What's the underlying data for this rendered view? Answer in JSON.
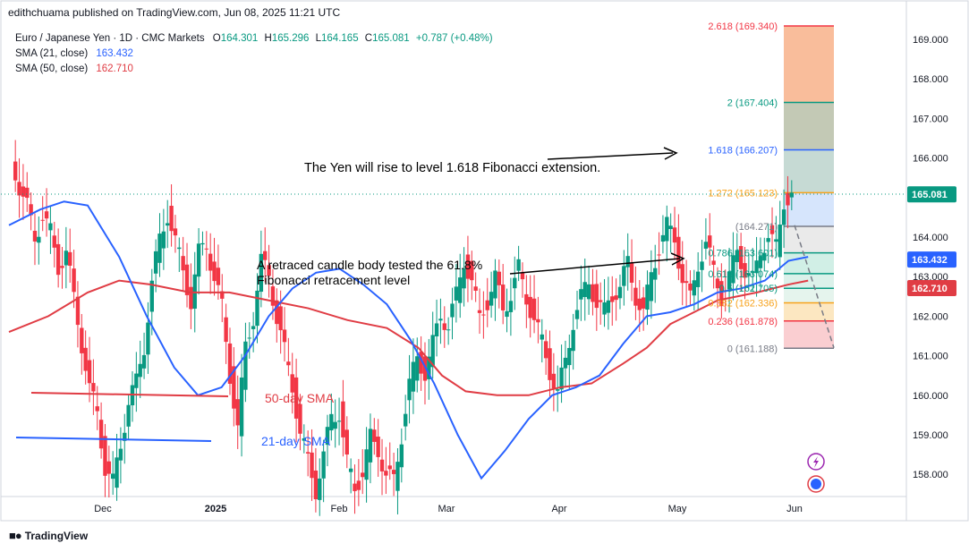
{
  "header": {
    "publisher": "edithchuama published on TradingView.com, Jun 08, 2025 11:21 UTC"
  },
  "legend": {
    "symbol": "Euro / Japanese Yen · 1D · CMC Markets",
    "o_label": "O",
    "o": "164.301",
    "h_label": "H",
    "h": "165.296",
    "l_label": "L",
    "l": "164.165",
    "c_label": "C",
    "c": "165.081",
    "change": "+0.787 (+0.48%)",
    "sma21": "SMA (21, close)",
    "sma21_value": "163.432",
    "sma50": "SMA (50, close)",
    "sma50_value": "162.710"
  },
  "footer": {
    "brand": "TradingView"
  },
  "colors": {
    "up": "#089981",
    "down": "#f23645",
    "sma21": "#2962ff",
    "sma50": "#e03c44",
    "axis": "#d1d4dc"
  },
  "chart_data": {
    "type": "candlestick",
    "y_axis": {
      "ticks": [
        "169.000",
        "168.000",
        "167.000",
        "166.000",
        "165.000",
        "164.000",
        "163.000",
        "162.000",
        "161.000",
        "160.000",
        "159.000",
        "158.000"
      ],
      "range": [
        157.5,
        169.5
      ]
    },
    "x_axis": {
      "labels": [
        "Dec",
        "2025",
        "Feb",
        "Mar",
        "Apr",
        "May",
        "Jun"
      ]
    },
    "price_labels": [
      {
        "value": 165.081,
        "text": "165.081",
        "color": "#089981"
      },
      {
        "value": 163.432,
        "text": "163.432",
        "color": "#2962ff"
      },
      {
        "value": 162.71,
        "text": "162.710",
        "color": "#e03c44"
      }
    ],
    "fibonacci": [
      {
        "level": 2.618,
        "price": 169.34,
        "text": "2.618 (169.340)",
        "color": "#f23645"
      },
      {
        "level": 2,
        "price": 167.404,
        "text": "2 (167.404)",
        "color": "#089981"
      },
      {
        "level": 1.618,
        "price": 166.207,
        "text": "1.618 (166.207)",
        "color": "#2962ff"
      },
      {
        "level": 1.272,
        "price": 165.123,
        "text": "1.272 (165.123)",
        "color": "#f7a21b"
      },
      {
        "level": 1,
        "price": 164.271,
        "text": "(164.271)",
        "color": "#787b86"
      },
      {
        "level": 0.786,
        "price": 163.601,
        "text": "0.786 (163.601)",
        "color": "#089981"
      },
      {
        "level": 0.618,
        "price": 163.074,
        "text": "0.618 (163.074)",
        "color": "#089981"
      },
      {
        "level": 0.5,
        "price": 162.705,
        "text": "0.5 (162.705)",
        "color": "#089981"
      },
      {
        "level": 0.382,
        "price": 162.336,
        "text": "0.382 (162.336)",
        "color": "#f7a21b"
      },
      {
        "level": 0.236,
        "price": 161.878,
        "text": "0.236 (161.878)",
        "color": "#f23645"
      },
      {
        "level": 0,
        "price": 161.188,
        "text": "0 (161.188)",
        "color": "#787b86"
      }
    ],
    "annotations": {
      "yen_rise": "The Yen  will rise to level 1.618 Fibonacci extension.",
      "retrace_line1": "A retraced candle body tested the 61.8%",
      "retrace_line2": "Fibonacci retracement level",
      "sma50_label": "50-day SMA",
      "sma21_label": "21-day SMA"
    },
    "sma21_path": [
      [
        164.3,
        0
      ],
      [
        164.7,
        8
      ],
      [
        164.9,
        14
      ],
      [
        164.8,
        20
      ],
      [
        163.5,
        28
      ],
      [
        162.0,
        35
      ],
      [
        160.7,
        42
      ],
      [
        160.0,
        48
      ],
      [
        160.2,
        54
      ],
      [
        161.0,
        60
      ],
      [
        162.0,
        66
      ],
      [
        162.7,
        72
      ],
      [
        163.1,
        78
      ],
      [
        163.2,
        84
      ],
      [
        162.8,
        90
      ],
      [
        162.3,
        96
      ],
      [
        161.4,
        102
      ],
      [
        160.3,
        108
      ],
      [
        159.0,
        114
      ],
      [
        157.9,
        120
      ],
      [
        158.6,
        126
      ],
      [
        159.4,
        132
      ],
      [
        160.0,
        138
      ],
      [
        160.2,
        144
      ],
      [
        160.5,
        150
      ],
      [
        161.3,
        156
      ],
      [
        162.0,
        162
      ],
      [
        162.1,
        168
      ],
      [
        162.3,
        174
      ],
      [
        162.6,
        180
      ],
      [
        162.7,
        186
      ],
      [
        162.9,
        192
      ],
      [
        163.4,
        198
      ],
      [
        163.5,
        203
      ]
    ],
    "sma50_path": [
      [
        161.6,
        0
      ],
      [
        162.0,
        10
      ],
      [
        162.6,
        20
      ],
      [
        162.9,
        28
      ],
      [
        162.8,
        36
      ],
      [
        162.6,
        46
      ],
      [
        162.6,
        56
      ],
      [
        162.4,
        66
      ],
      [
        162.2,
        76
      ],
      [
        161.9,
        86
      ],
      [
        161.7,
        96
      ],
      [
        161.2,
        104
      ],
      [
        160.5,
        110
      ],
      [
        160.1,
        116
      ],
      [
        160.0,
        124
      ],
      [
        160.0,
        132
      ],
      [
        160.2,
        140
      ],
      [
        160.3,
        148
      ],
      [
        160.8,
        156
      ],
      [
        161.2,
        162
      ],
      [
        161.8,
        168
      ],
      [
        162.1,
        174
      ],
      [
        162.4,
        180
      ],
      [
        162.6,
        190
      ],
      [
        162.8,
        198
      ],
      [
        162.9,
        203
      ]
    ]
  }
}
